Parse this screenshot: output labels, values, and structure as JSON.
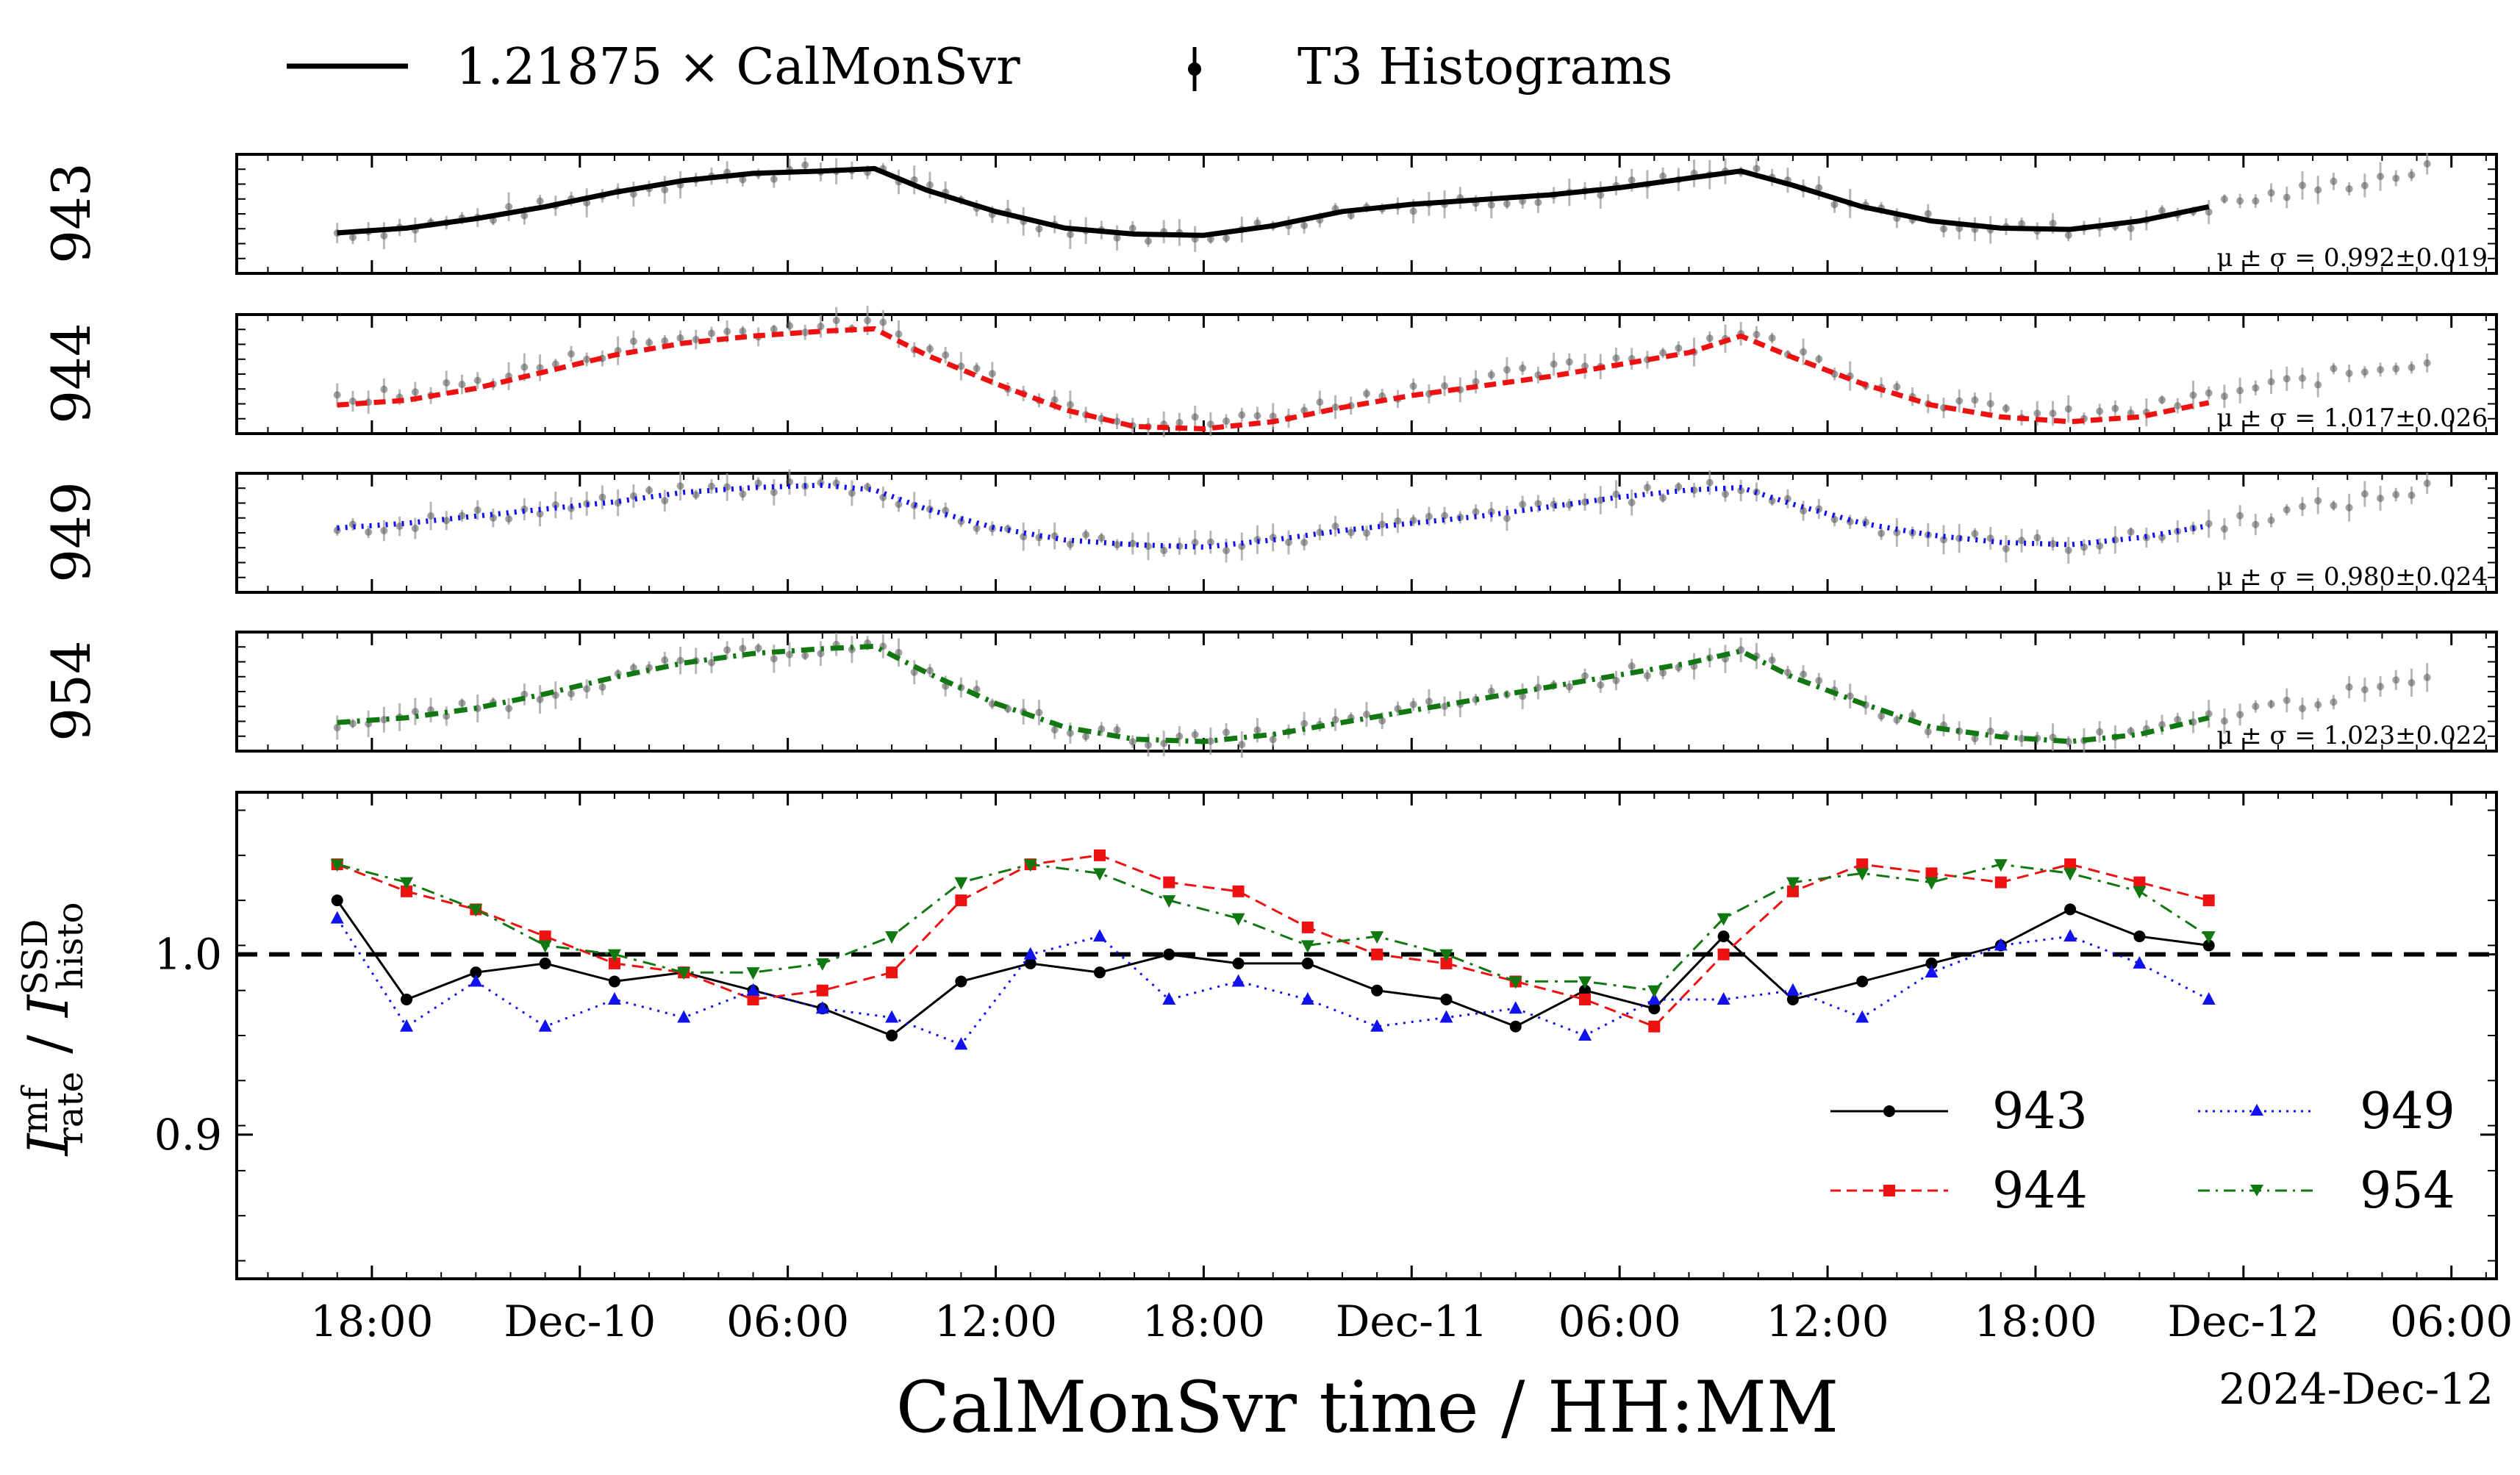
{
  "chart_data": {
    "type": "line",
    "x_unit": "hours after 2024-12-09 00:00",
    "x_ticks": [
      {
        "x": 18,
        "label": "18:00"
      },
      {
        "x": 24,
        "label": "Dec-10"
      },
      {
        "x": 30,
        "label": "06:00"
      },
      {
        "x": 36,
        "label": "12:00"
      },
      {
        "x": 42,
        "label": "18:00"
      },
      {
        "x": 48,
        "label": "Dec-11"
      },
      {
        "x": 54,
        "label": "06:00"
      },
      {
        "x": 60,
        "label": "12:00"
      },
      {
        "x": 66,
        "label": "18:00"
      },
      {
        "x": 72,
        "label": "Dec-12"
      },
      {
        "x": 78,
        "label": "06:00"
      }
    ],
    "xlim": [
      14.1,
      79.3
    ],
    "xlabel": "CalMonSvr time / HH:MM",
    "date_label": "2024-Dec-12",
    "top_legend": {
      "line_label": "1.21875 × CalMonSvr",
      "points_label": "T3 Histograms"
    },
    "panels": [
      {
        "name": "943",
        "color": "#000000",
        "dash": "solid",
        "stat": "μ ± σ = 0.992±0.019",
        "ref_x": [
          17,
          19,
          21,
          23,
          25,
          27,
          29,
          31,
          32.5,
          34,
          36,
          38,
          40,
          42,
          44,
          46,
          48,
          50,
          52,
          54,
          56,
          57.5,
          59,
          61,
          63,
          65,
          67,
          69,
          71
        ],
        "ref_y": [
          0.34,
          0.38,
          0.46,
          0.56,
          0.68,
          0.78,
          0.84,
          0.86,
          0.88,
          0.7,
          0.52,
          0.38,
          0.33,
          0.32,
          0.4,
          0.52,
          0.58,
          0.62,
          0.66,
          0.72,
          0.8,
          0.86,
          0.74,
          0.56,
          0.44,
          0.38,
          0.37,
          0.44,
          0.56
        ]
      },
      {
        "name": "944",
        "color": "#ee1111",
        "dash": "dashed",
        "stat": "μ ± σ = 1.017±0.026",
        "ref_x": [
          17,
          19,
          21,
          23,
          25,
          27,
          29,
          31,
          32.5,
          34,
          36,
          38,
          40,
          42,
          44,
          46,
          48,
          50,
          52,
          54,
          56,
          57.5,
          59,
          61,
          63,
          65,
          67,
          69,
          71
        ],
        "ref_y": [
          0.24,
          0.28,
          0.38,
          0.52,
          0.66,
          0.76,
          0.82,
          0.86,
          0.88,
          0.66,
          0.42,
          0.2,
          0.06,
          0.04,
          0.1,
          0.22,
          0.32,
          0.4,
          0.48,
          0.58,
          0.68,
          0.82,
          0.64,
          0.42,
          0.24,
          0.14,
          0.1,
          0.14,
          0.26
        ]
      },
      {
        "name": "949",
        "color": "#1111ee",
        "dash": "dotted",
        "stat": "μ ± σ = 0.980±0.024",
        "ref_x": [
          17,
          19,
          21,
          23,
          25,
          27,
          29,
          31,
          32.5,
          34,
          36,
          38,
          40,
          42,
          44,
          46,
          48,
          50,
          52,
          54,
          56,
          57.5,
          59,
          61,
          63,
          65,
          67,
          69,
          71
        ],
        "ref_y": [
          0.54,
          0.58,
          0.64,
          0.7,
          0.76,
          0.84,
          0.88,
          0.9,
          0.86,
          0.7,
          0.54,
          0.44,
          0.4,
          0.38,
          0.44,
          0.52,
          0.58,
          0.64,
          0.72,
          0.8,
          0.86,
          0.88,
          0.74,
          0.58,
          0.48,
          0.42,
          0.4,
          0.46,
          0.56
        ]
      },
      {
        "name": "954",
        "color": "#117711",
        "dash": "dashdot",
        "stat": "μ ± σ = 1.023±0.022",
        "ref_x": [
          17,
          19,
          21,
          23,
          25,
          27,
          29,
          31,
          32.5,
          34,
          36,
          38,
          40,
          42,
          44,
          46,
          48,
          50,
          52,
          54,
          56,
          57.5,
          59,
          61,
          63,
          65,
          67,
          69,
          71
        ],
        "ref_y": [
          0.24,
          0.28,
          0.36,
          0.48,
          0.62,
          0.74,
          0.82,
          0.86,
          0.88,
          0.66,
          0.4,
          0.2,
          0.1,
          0.08,
          0.14,
          0.24,
          0.34,
          0.44,
          0.54,
          0.64,
          0.74,
          0.84,
          0.62,
          0.4,
          0.2,
          0.12,
          0.08,
          0.14,
          0.28
        ]
      }
    ],
    "ratio_panel": {
      "ylabel_main": "I",
      "ylabel_num_sup": "mf",
      "ylabel_num_sub": "rate",
      "ylabel_sep": " / ",
      "ylabel_den_sup": "SSD",
      "ylabel_den_sub": "histo",
      "ylim": [
        0.82,
        1.09
      ],
      "y_ticks": [
        {
          "y": 0.9,
          "label": "0.9"
        },
        {
          "y": 1.0,
          "label": "1.0"
        }
      ],
      "reference_line": 1.0,
      "series": [
        {
          "name": "943",
          "color": "#000000",
          "marker": "circle",
          "dash": "solid",
          "x": [
            17,
            19,
            21,
            23,
            25,
            27,
            29,
            31,
            33,
            35,
            37,
            39,
            41,
            43,
            45,
            47,
            49,
            51,
            53,
            55,
            57,
            59,
            61,
            63,
            65,
            67,
            69,
            71
          ],
          "y": [
            1.03,
            0.975,
            0.99,
            0.995,
            0.985,
            0.99,
            0.98,
            0.97,
            0.955,
            0.985,
            0.995,
            0.99,
            1.0,
            0.995,
            0.995,
            0.98,
            0.975,
            0.96,
            0.98,
            0.97,
            1.01,
            0.975,
            0.985,
            0.995,
            1.005,
            1.025,
            1.01,
            1.005
          ]
        },
        {
          "name": "944",
          "color": "#ee1111",
          "marker": "square",
          "dash": "dashed",
          "x": [
            17,
            19,
            21,
            23,
            25,
            27,
            29,
            31,
            33,
            35,
            37,
            39,
            41,
            43,
            45,
            47,
            49,
            51,
            53,
            55,
            57,
            59,
            61,
            63,
            65,
            67,
            69,
            71
          ],
          "y": [
            1.05,
            1.035,
            1.025,
            1.01,
            0.995,
            0.99,
            0.975,
            0.98,
            0.99,
            1.03,
            1.05,
            1.055,
            1.04,
            1.035,
            1.015,
            1.0,
            0.995,
            0.985,
            0.975,
            0.96,
            1.0,
            1.035,
            1.05,
            1.045,
            1.04,
            1.05,
            1.04,
            1.03
          ]
        },
        {
          "name": "949",
          "color": "#1111ee",
          "marker": "triangle-up",
          "dash": "dotted",
          "x": [
            17,
            19,
            21,
            23,
            25,
            27,
            29,
            31,
            33,
            35,
            37,
            39,
            41,
            43,
            45,
            47,
            49,
            51,
            53,
            55,
            57,
            59,
            61,
            63,
            65,
            67,
            69,
            71
          ],
          "y": [
            1.02,
            0.96,
            0.985,
            0.96,
            0.975,
            0.965,
            0.98,
            0.97,
            0.965,
            0.95,
            1.0,
            1.01,
            0.975,
            0.985,
            0.975,
            0.96,
            0.965,
            0.97,
            0.955,
            0.975,
            0.975,
            0.98,
            0.965,
            0.99,
            1.005,
            1.01,
            0.995,
            0.975
          ]
        },
        {
          "name": "954",
          "color": "#117711",
          "marker": "triangle-down",
          "dash": "dashdot",
          "x": [
            17,
            19,
            21,
            23,
            25,
            27,
            29,
            31,
            33,
            35,
            37,
            39,
            41,
            43,
            45,
            47,
            49,
            51,
            53,
            55,
            57,
            59,
            61,
            63,
            65,
            67,
            69,
            71
          ],
          "y": [
            1.05,
            1.04,
            1.025,
            1.005,
            1.0,
            0.99,
            0.99,
            0.995,
            1.01,
            1.04,
            1.05,
            1.045,
            1.03,
            1.02,
            1.005,
            1.01,
            1.0,
            0.985,
            0.985,
            0.98,
            1.02,
            1.04,
            1.045,
            1.04,
            1.05,
            1.045,
            1.035,
            1.01
          ]
        }
      ]
    }
  }
}
